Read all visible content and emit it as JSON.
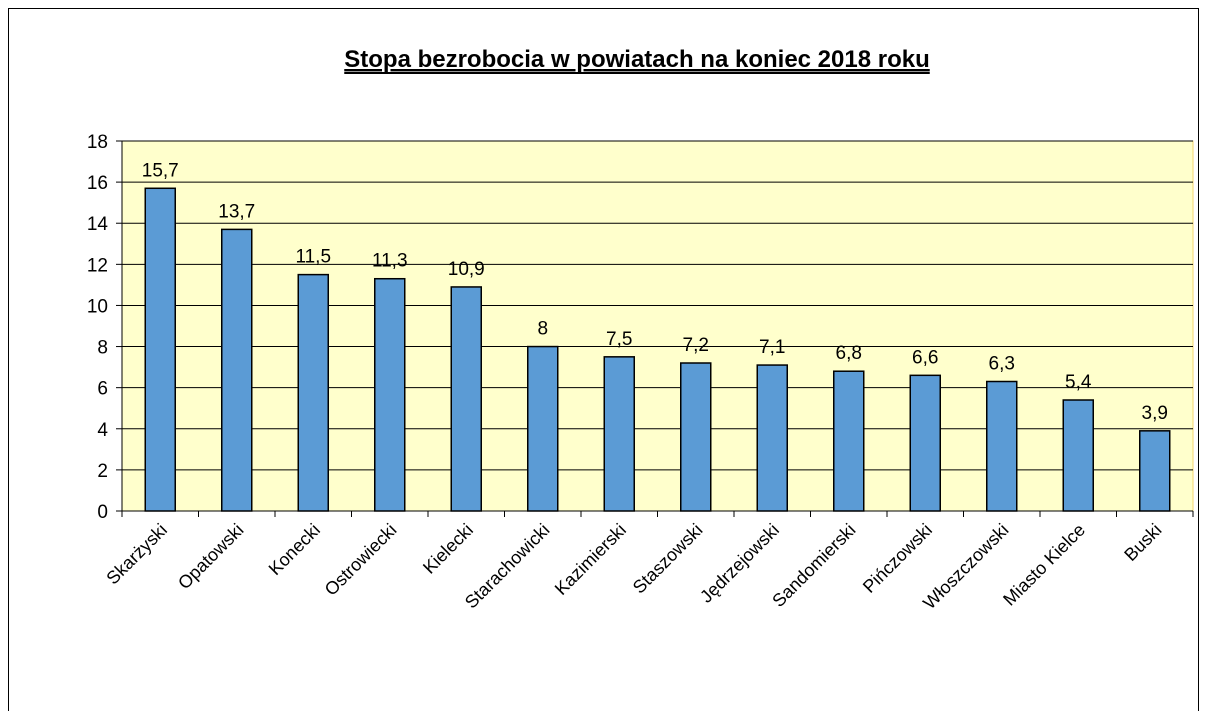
{
  "chart_data": {
    "type": "bar",
    "title": "Stopa bezrobocia w powiatach na koniec 2018 roku",
    "categories": [
      "Skarżyski",
      "Opatowski",
      "Konecki",
      "Ostrowiecki",
      "Kielecki",
      "Starachowicki",
      "Kazimierski",
      "Staszowski",
      "Jędrzejowski",
      "Sandomierski",
      "Pińczowski",
      "Włoszczowski",
      "Miasto Kielce",
      "Buski"
    ],
    "values": [
      15.7,
      13.7,
      11.5,
      11.3,
      10.9,
      8,
      7.5,
      7.2,
      7.1,
      6.8,
      6.6,
      6.3,
      5.4,
      3.9
    ],
    "value_labels": [
      "15,7",
      "13,7",
      "11,5",
      "11,3",
      "10,9",
      "8",
      "7,5",
      "7,2",
      "7,1",
      "6,8",
      "6,6",
      "6,3",
      "5,4",
      "3,9"
    ],
    "color": "#5b9bd5",
    "ylim": [
      0,
      18
    ],
    "yticks": [
      0,
      2,
      4,
      6,
      8,
      10,
      12,
      14,
      16,
      18
    ],
    "grid": true
  }
}
